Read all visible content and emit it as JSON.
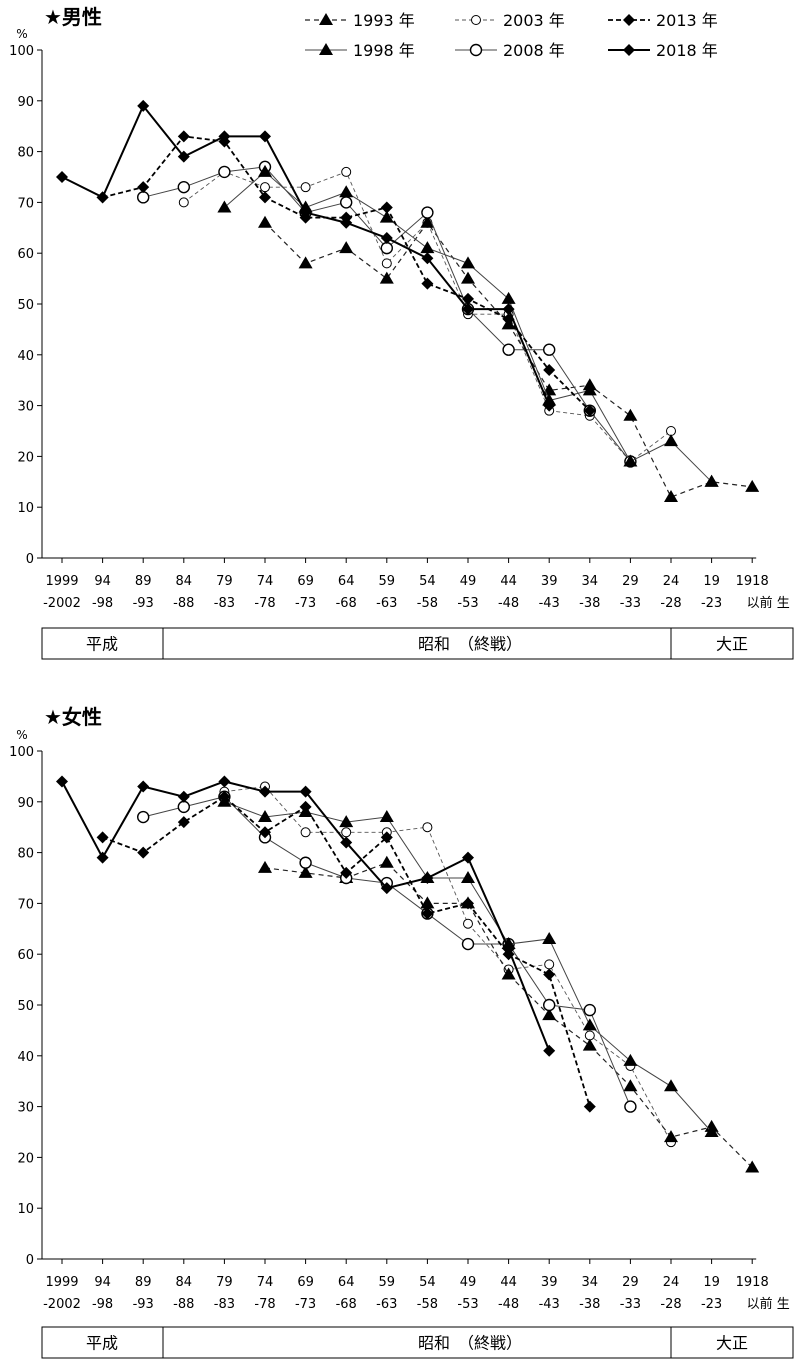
{
  "x_categories": [
    {
      "top": "1999",
      "bottom": "-2002"
    },
    {
      "top": "94",
      "bottom": "-98"
    },
    {
      "top": "89",
      "bottom": "-93"
    },
    {
      "top": "84",
      "bottom": "-88"
    },
    {
      "top": "79",
      "bottom": "-83"
    },
    {
      "top": "74",
      "bottom": "-78"
    },
    {
      "top": "69",
      "bottom": "-73"
    },
    {
      "top": "64",
      "bottom": "-68"
    },
    {
      "top": "59",
      "bottom": "-63"
    },
    {
      "top": "54",
      "bottom": "-58"
    },
    {
      "top": "49",
      "bottom": "-53"
    },
    {
      "top": "44",
      "bottom": "-48"
    },
    {
      "top": "39",
      "bottom": "-43"
    },
    {
      "top": "34",
      "bottom": "-38"
    },
    {
      "top": "29",
      "bottom": "-33"
    },
    {
      "top": "24",
      "bottom": "-28"
    },
    {
      "top": "19",
      "bottom": "-23"
    },
    {
      "top": "1918",
      "bottom": "以前 生"
    }
  ],
  "y_unit": "%",
  "y_ticks": [
    "0",
    "10",
    "20",
    "30",
    "40",
    "50",
    "60",
    "70",
    "80",
    "90",
    "100"
  ],
  "era_bar": {
    "heisei": "平成",
    "showa": "昭和　（終戦）",
    "taisho": "大正"
  },
  "legend": [
    "1993 年",
    "2003 年",
    "2013 年",
    "1998 年",
    "2008 年",
    "2018 年"
  ],
  "chart_data": [
    {
      "type": "line",
      "title": "★男性",
      "ylabel": "%",
      "ylim": [
        0,
        100
      ],
      "grid": false,
      "legend_position": "top",
      "x": [
        "1999-2002",
        "94-98",
        "89-93",
        "84-88",
        "79-83",
        "74-78",
        "69-73",
        "64-68",
        "59-63",
        "54-58",
        "49-53",
        "44-48",
        "39-43",
        "34-38",
        "29-33",
        "24-28",
        "19-23",
        "1918以前生"
      ],
      "series": [
        {
          "name": "1993 年",
          "values": [
            null,
            null,
            null,
            null,
            null,
            66,
            58,
            61,
            55,
            66,
            55,
            46,
            33,
            34,
            28,
            12,
            15,
            14
          ]
        },
        {
          "name": "1998 年",
          "values": [
            null,
            null,
            null,
            null,
            69,
            76,
            69,
            72,
            67,
            61,
            58,
            51,
            31,
            33,
            19,
            23,
            15,
            null
          ]
        },
        {
          "name": "2003 年",
          "values": [
            null,
            null,
            null,
            70,
            76,
            73,
            73,
            76,
            58,
            66,
            48,
            48,
            29,
            28,
            19,
            25,
            null,
            null
          ]
        },
        {
          "name": "2008 年",
          "values": [
            null,
            null,
            71,
            73,
            76,
            77,
            68,
            70,
            61,
            68,
            49,
            41,
            41,
            29,
            19,
            null,
            null,
            null
          ]
        },
        {
          "name": "2013 年",
          "values": [
            null,
            71,
            73,
            83,
            82,
            71,
            67,
            67,
            69,
            54,
            51,
            47,
            37,
            29,
            null,
            null,
            null,
            null
          ]
        },
        {
          "name": "2018 年",
          "values": [
            75,
            71,
            89,
            79,
            83,
            83,
            68,
            66,
            63,
            59,
            49,
            49,
            30,
            null,
            null,
            null,
            null,
            null
          ]
        }
      ]
    },
    {
      "type": "line",
      "title": "★女性",
      "ylabel": "%",
      "ylim": [
        0,
        100
      ],
      "grid": false,
      "legend_position": "none",
      "x": [
        "1999-2002",
        "94-98",
        "89-93",
        "84-88",
        "79-83",
        "74-78",
        "69-73",
        "64-68",
        "59-63",
        "54-58",
        "49-53",
        "44-48",
        "39-43",
        "34-38",
        "29-33",
        "24-28",
        "19-23",
        "1918以前生"
      ],
      "series": [
        {
          "name": "1993 年",
          "values": [
            null,
            null,
            null,
            null,
            null,
            77,
            76,
            75,
            78,
            70,
            70,
            56,
            48,
            42,
            34,
            24,
            26,
            18
          ]
        },
        {
          "name": "1998 年",
          "values": [
            null,
            null,
            null,
            null,
            90,
            87,
            88,
            86,
            87,
            75,
            75,
            62,
            63,
            46,
            39,
            34,
            25,
            null
          ]
        },
        {
          "name": "2003 年",
          "values": [
            null,
            null,
            null,
            null,
            92,
            93,
            84,
            84,
            84,
            85,
            66,
            57,
            58,
            44,
            38,
            23,
            null,
            null
          ]
        },
        {
          "name": "2008 年",
          "values": [
            null,
            null,
            87,
            89,
            91,
            83,
            78,
            75,
            74,
            68,
            62,
            62,
            50,
            49,
            30,
            null,
            null,
            null
          ]
        },
        {
          "name": "2013 年",
          "values": [
            null,
            83,
            80,
            86,
            91,
            84,
            89,
            76,
            83,
            68,
            70,
            60,
            56,
            30,
            null,
            null,
            null,
            null
          ]
        },
        {
          "name": "2018 年",
          "values": [
            94,
            79,
            93,
            91,
            94,
            92,
            92,
            82,
            73,
            75,
            79,
            61,
            41,
            null,
            null,
            null,
            null,
            null
          ]
        }
      ]
    }
  ]
}
